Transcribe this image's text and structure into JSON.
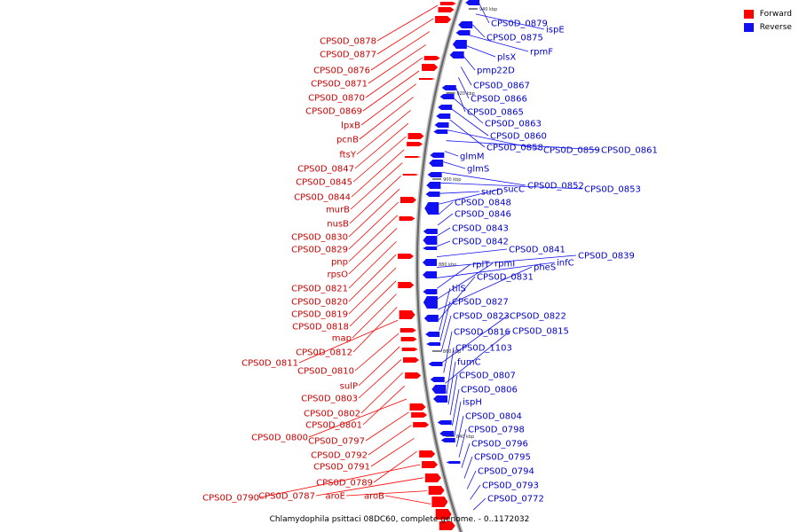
{
  "caption": "Chlamydophila psittaci 08DC60, complete genome. - 0..1172032",
  "legend": {
    "forward_label": "Forward",
    "reverse_label": "Reverse",
    "forward_color": "#ff0000",
    "reverse_color": "#1010f0"
  },
  "ticks": [
    "940 kbp",
    "920 kbp",
    "900 kbp",
    "880 kbp",
    "860 kbp",
    "840 kbp"
  ],
  "forward_genes": [
    "CPS0D_0878",
    "CPS0D_0877",
    "CPS0D_0876",
    "CPS0D_0871",
    "CPS0D_0870",
    "CPS0D_0869",
    "lpxB",
    "pcnB",
    "ftsY",
    "CPS0D_0847",
    "CPS0D_0845",
    "CPS0D_0844",
    "murB",
    "nusB",
    "CPS0D_0830",
    "CPS0D_0829",
    "pnp",
    "rpsO",
    "CPS0D_0821",
    "CPS0D_0820",
    "CPS0D_0819",
    "CPS0D_0818",
    "map",
    "CPS0D_0812",
    "CPS0D_0811",
    "CPS0D_0810",
    "sulP",
    "CPS0D_0803",
    "CPS0D_0802",
    "CPS0D_0801",
    "CPS0D_0800",
    "CPS0D_0797",
    "CPS0D_0792",
    "CPS0D_0791",
    "CPS0D_0789",
    "CPS0D_0790",
    "CPS0D_0787",
    "aroE",
    "aroB"
  ],
  "reverse_genes": [
    "CPS0D_0879",
    "ispE",
    "CPS0D_0875",
    "rpmF",
    "plsX",
    "pmp22D",
    "CPS0D_0867",
    "CPS0D_0866",
    "CPS0D_0865",
    "CPS0D_0863",
    "CPS0D_0860",
    "CPS0D_0858",
    "CPS0D_0859",
    "CPS0D_0861",
    "glmM",
    "glmS",
    "CPS0D_0852",
    "CPS0D_0853",
    "sucD",
    "sucC",
    "CPS0D_0848",
    "CPS0D_0846",
    "CPS0D_0843",
    "CPS0D_0842",
    "CPS0D_0841",
    "CPS0D_0839",
    "infC",
    "rplT",
    "rpmI",
    "pheS",
    "CPS0D_0831",
    "tilS",
    "CPS0D_0827",
    "CPS0D_0823",
    "CPS0D_0822",
    "CPS0D_0816",
    "CPS0D_0815",
    "CPS0D_1103",
    "fumC",
    "CPS0D_0807",
    "CPS0D_0806",
    "ispH",
    "CPS0D_0804",
    "CPS0D_0798",
    "CPS0D_0796",
    "CPS0D_0795",
    "CPS0D_0794",
    "CPS0D_0793",
    "CPS0D_0772"
  ]
}
